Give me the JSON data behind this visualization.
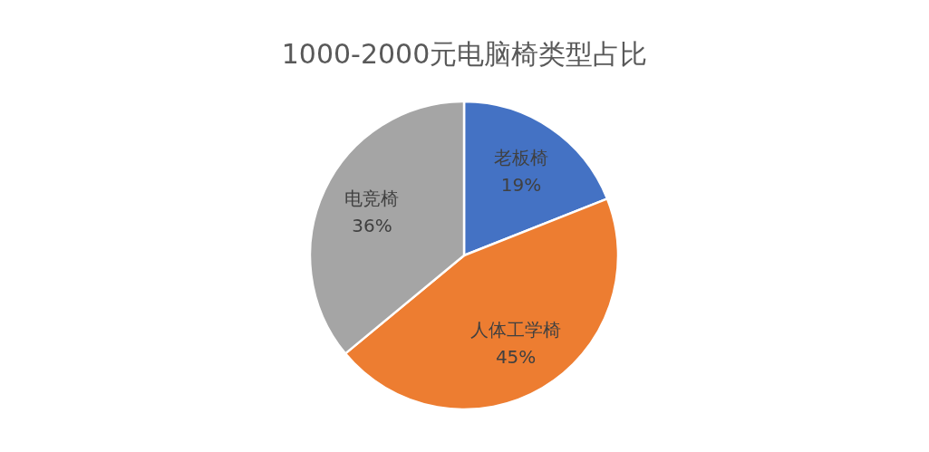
{
  "chart_data": {
    "type": "pie",
    "title": "1000-2000元电脑椅类型占比",
    "categories": [
      "老板椅",
      "人体工学椅",
      "电竞椅"
    ],
    "values": [
      19,
      45,
      36
    ],
    "value_labels": [
      "19%",
      "45%",
      "36%"
    ],
    "colors": [
      "#4472c4",
      "#ed7d31",
      "#a5a5a5"
    ],
    "legend": false
  }
}
